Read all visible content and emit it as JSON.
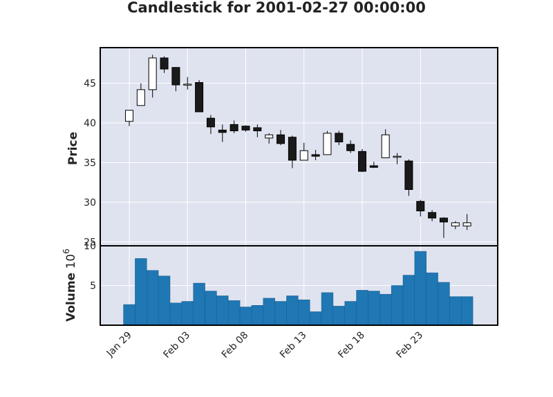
{
  "chart_data": {
    "type": "candlestick",
    "title": "Candlestick for 2001-02-27 00:00:00",
    "price_ylabel": "Price",
    "volume_ylabel": "Volume",
    "volume_multiplier_label": "10",
    "volume_multiplier_exp": "6",
    "price_ylim": [
      24.5,
      49.5
    ],
    "volume_ylim": [
      0,
      10
    ],
    "price_yticks": [
      "25",
      "30",
      "35",
      "40",
      "45"
    ],
    "volume_yticks": [
      "5",
      "10"
    ],
    "xtick_labels": [
      "Jan 29",
      "Feb 03",
      "Feb 08",
      "Feb 13",
      "Feb 18",
      "Feb 23"
    ],
    "xtick_days": [
      0,
      5,
      10,
      15,
      20,
      25
    ],
    "candles": [
      {
        "day": 0,
        "open": 40.2,
        "high": 41.6,
        "low": 39.6,
        "close": 41.6,
        "volume": 2.6
      },
      {
        "day": 1,
        "open": 42.2,
        "high": 45.0,
        "low": 42.2,
        "close": 44.2,
        "volume": 8.4
      },
      {
        "day": 2,
        "open": 44.2,
        "high": 48.6,
        "low": 43.2,
        "close": 48.2,
        "volume": 6.9
      },
      {
        "day": 3,
        "open": 48.2,
        "high": 48.4,
        "low": 46.3,
        "close": 46.8,
        "volume": 6.2
      },
      {
        "day": 4,
        "open": 47.0,
        "high": 47.0,
        "low": 44.0,
        "close": 44.8,
        "volume": 2.8
      },
      {
        "day": 5,
        "open": 44.8,
        "high": 45.8,
        "low": 44.2,
        "close": 44.9,
        "volume": 3.0
      },
      {
        "day": 6,
        "open": 45.1,
        "high": 45.4,
        "low": 41.4,
        "close": 41.4,
        "volume": 5.3
      },
      {
        "day": 7,
        "open": 40.6,
        "high": 41.0,
        "low": 38.6,
        "close": 39.5,
        "volume": 4.3
      },
      {
        "day": 8,
        "open": 39.1,
        "high": 39.8,
        "low": 37.6,
        "close": 38.8,
        "volume": 3.7
      },
      {
        "day": 9,
        "open": 39.8,
        "high": 40.3,
        "low": 38.7,
        "close": 39.0,
        "volume": 3.1
      },
      {
        "day": 10,
        "open": 39.6,
        "high": 39.7,
        "low": 38.9,
        "close": 39.1,
        "volume": 2.3
      },
      {
        "day": 11,
        "open": 39.4,
        "high": 39.8,
        "low": 38.2,
        "close": 39.0,
        "volume": 2.5
      },
      {
        "day": 12,
        "open": 38.1,
        "high": 38.7,
        "low": 37.4,
        "close": 38.5,
        "volume": 3.4
      },
      {
        "day": 13,
        "open": 38.5,
        "high": 39.1,
        "low": 37.2,
        "close": 37.4,
        "volume": 3.0
      },
      {
        "day": 14,
        "open": 38.2,
        "high": 38.4,
        "low": 34.3,
        "close": 35.3,
        "volume": 3.7
      },
      {
        "day": 15,
        "open": 35.3,
        "high": 37.5,
        "low": 35.3,
        "close": 36.5,
        "volume": 3.2
      },
      {
        "day": 16,
        "open": 36.0,
        "high": 36.6,
        "low": 35.3,
        "close": 35.8,
        "volume": 1.7
      },
      {
        "day": 17,
        "open": 36.0,
        "high": 39.0,
        "low": 36.0,
        "close": 38.7,
        "volume": 4.1
      },
      {
        "day": 18,
        "open": 38.7,
        "high": 39.0,
        "low": 37.2,
        "close": 37.6,
        "volume": 2.4
      },
      {
        "day": 19,
        "open": 37.3,
        "high": 37.8,
        "low": 36.2,
        "close": 36.5,
        "volume": 3.0
      },
      {
        "day": 20,
        "open": 36.4,
        "high": 36.7,
        "low": 33.8,
        "close": 33.9,
        "volume": 4.4
      },
      {
        "day": 21,
        "open": 34.6,
        "high": 35.1,
        "low": 34.3,
        "close": 34.4,
        "volume": 4.3
      },
      {
        "day": 22,
        "open": 35.6,
        "high": 39.2,
        "low": 35.6,
        "close": 38.5,
        "volume": 3.9
      },
      {
        "day": 23,
        "open": 35.7,
        "high": 36.2,
        "low": 34.8,
        "close": 35.8,
        "volume": 5.0
      },
      {
        "day": 24,
        "open": 35.2,
        "high": 35.4,
        "low": 30.8,
        "close": 31.6,
        "volume": 6.3
      },
      {
        "day": 25,
        "open": 30.1,
        "high": 30.3,
        "low": 28.2,
        "close": 28.9,
        "volume": 9.3
      },
      {
        "day": 26,
        "open": 28.7,
        "high": 29.0,
        "low": 27.6,
        "close": 28.0,
        "volume": 6.6
      },
      {
        "day": 27,
        "open": 28.0,
        "high": 28.1,
        "low": 25.5,
        "close": 27.5,
        "volume": 5.4
      },
      {
        "day": 28,
        "open": 27.0,
        "high": 27.6,
        "low": 26.6,
        "close": 27.4,
        "volume": 3.6
      },
      {
        "day": 29,
        "open": 27.0,
        "high": 28.5,
        "low": 26.5,
        "close": 27.4,
        "volume": 3.6
      }
    ],
    "grid": true,
    "colors": {
      "panel_bg": "#dfe3ef",
      "grid": "#ffffff",
      "up_fill": "#ffffff",
      "down_fill": "#1a1a1a",
      "candle_edge": "#000000",
      "volume_bar": "#1f77b4",
      "volume_edge": "#1a5a8c"
    }
  }
}
